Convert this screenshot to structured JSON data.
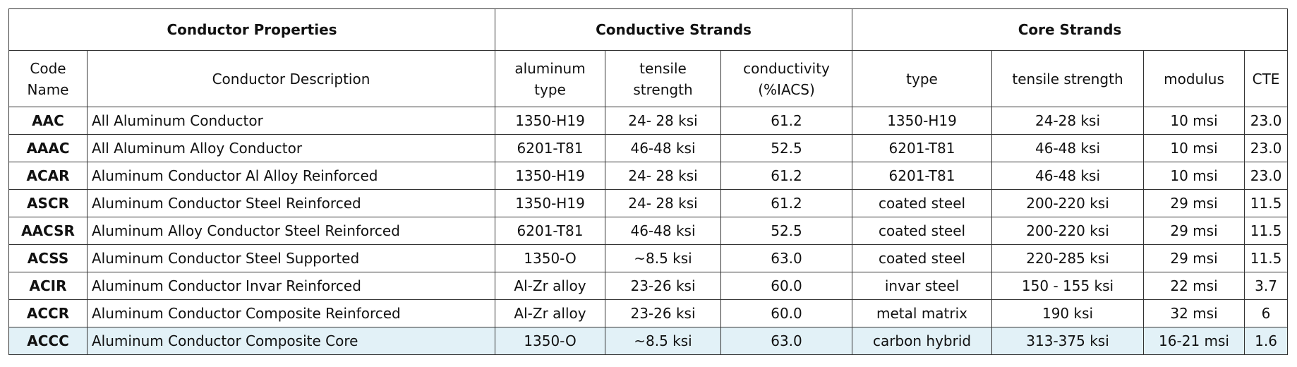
{
  "table": {
    "group_headers": [
      "Conductor Properties",
      "Conductive Strands",
      "Core Strands"
    ],
    "columns": [
      "Code\nName",
      "Conductor Description",
      "aluminum\ntype",
      "tensile\nstrength",
      "conductivity\n(%IACS)",
      "type",
      "tensile strength",
      "modulus",
      "CTE"
    ],
    "rows": [
      [
        "AAC",
        "All Aluminum Conductor",
        "1350-H19",
        "24- 28 ksi",
        "61.2",
        "1350-H19",
        "24-28 ksi",
        "10 msi",
        "23.0"
      ],
      [
        "AAAC",
        "All Aluminum Alloy Conductor",
        "6201-T81",
        "46-48 ksi",
        "52.5",
        "6201-T81",
        "46-48 ksi",
        "10 msi",
        "23.0"
      ],
      [
        "ACAR",
        "Aluminum Conductor Al Alloy Reinforced",
        "1350-H19",
        "24- 28 ksi",
        "61.2",
        "6201-T81",
        "46-48 ksi",
        "10 msi",
        "23.0"
      ],
      [
        "ASCR",
        "Aluminum Conductor Steel Reinforced",
        "1350-H19",
        "24- 28 ksi",
        "61.2",
        "coated steel",
        "200-220 ksi",
        "29 msi",
        "11.5"
      ],
      [
        "AACSR",
        "Aluminum Alloy Conductor Steel Reinforced",
        "6201-T81",
        "46-48 ksi",
        "52.5",
        "coated steel",
        "200-220 ksi",
        "29 msi",
        "11.5"
      ],
      [
        "ACSS",
        "Aluminum Conductor Steel Supported",
        "1350-O",
        "~8.5 ksi",
        "63.0",
        "coated steel",
        "220-285 ksi",
        "29 msi",
        "11.5"
      ],
      [
        "ACIR",
        "Aluminum Conductor Invar Reinforced",
        "Al-Zr alloy",
        "23-26 ksi",
        "60.0",
        "invar steel",
        "150 - 155 ksi",
        "22 msi",
        "3.7"
      ],
      [
        "ACCR",
        "Aluminum Conductor Composite Reinforced",
        "Al-Zr alloy",
        "23-26 ksi",
        "60.0",
        "metal matrix",
        "190 ksi",
        "32 msi",
        "6"
      ],
      [
        "ACCC",
        "Aluminum Conductor Composite Core",
        "1350-O",
        "~8.5 ksi",
        "63.0",
        "carbon hybrid",
        "313-375 ksi",
        "16-21 msi",
        "1.6"
      ]
    ]
  }
}
